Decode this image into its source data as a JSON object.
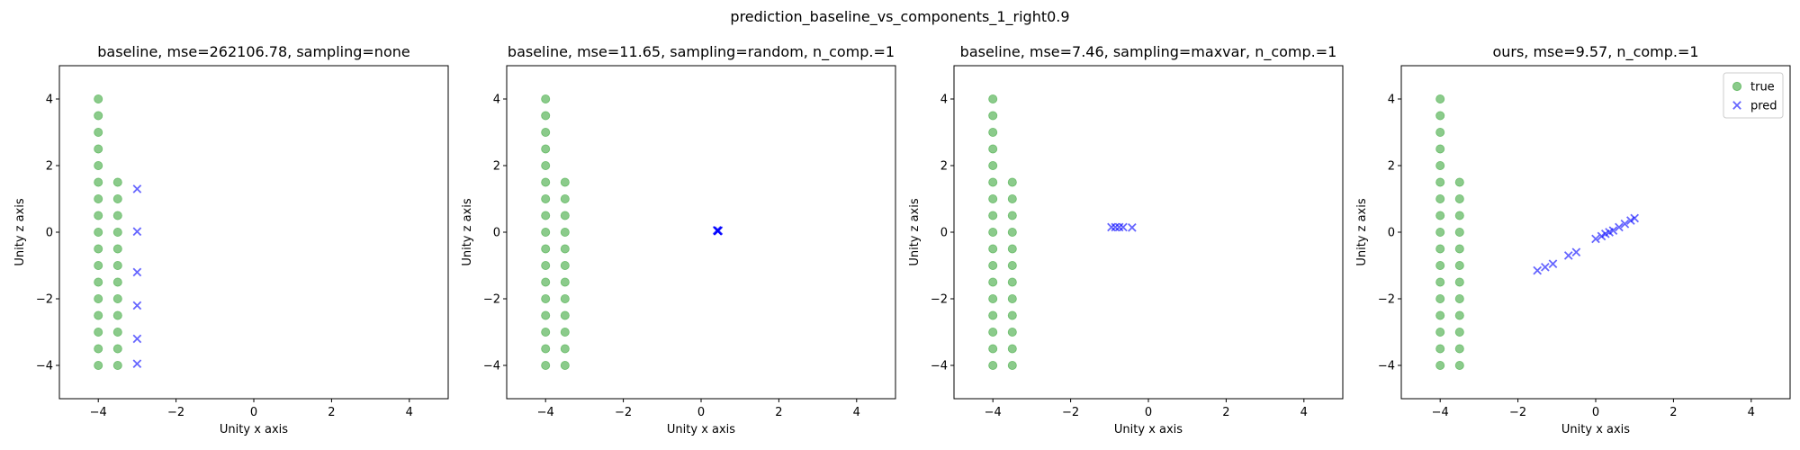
{
  "figure_title": "prediction_baseline_vs_components_1_right0.9",
  "chart_data": [
    {
      "type": "scatter",
      "title": "baseline, mse=262106.78, sampling=none",
      "xlabel": "Unity x axis",
      "ylabel": "Unity z axis",
      "xlim": [
        -5,
        5
      ],
      "ylim": [
        -5,
        5
      ],
      "xticks": [
        -4,
        -2,
        0,
        2,
        4
      ],
      "yticks": [
        -4,
        -2,
        0,
        2,
        4
      ],
      "grid": false,
      "series": [
        {
          "role": "true",
          "marker": "circle",
          "color": "#2ca02c",
          "points": [
            [
              -4,
              4
            ],
            [
              -4,
              3.5
            ],
            [
              -4,
              3
            ],
            [
              -4,
              2.5
            ],
            [
              -4,
              2
            ],
            [
              -4,
              1.5
            ],
            [
              -4,
              1
            ],
            [
              -4,
              0.5
            ],
            [
              -4,
              0
            ],
            [
              -4,
              -0.5
            ],
            [
              -4,
              -1
            ],
            [
              -4,
              -1.5
            ],
            [
              -4,
              -2
            ],
            [
              -4,
              -2.5
            ],
            [
              -4,
              -3
            ],
            [
              -4,
              -3.5
            ],
            [
              -4,
              -4
            ],
            [
              -3.5,
              1.5
            ],
            [
              -3.5,
              1
            ],
            [
              -3.5,
              0.5
            ],
            [
              -3.5,
              0
            ],
            [
              -3.5,
              -0.5
            ],
            [
              -3.5,
              -1
            ],
            [
              -3.5,
              -1.5
            ],
            [
              -3.5,
              -2
            ],
            [
              -3.5,
              -2.5
            ],
            [
              -3.5,
              -3
            ],
            [
              -3.5,
              -3.5
            ],
            [
              -3.5,
              -4
            ]
          ]
        },
        {
          "role": "pred",
          "marker": "x",
          "color": "#0000ff",
          "points": [
            [
              -3,
              1.3
            ],
            [
              -3,
              0.02
            ],
            [
              -3,
              -1.2
            ],
            [
              -3,
              -2.2
            ],
            [
              -3,
              -3.2
            ],
            [
              -3,
              -3.95
            ]
          ]
        }
      ]
    },
    {
      "type": "scatter",
      "title": "baseline, mse=11.65, sampling=random, n_comp.=1",
      "xlabel": "Unity x axis",
      "ylabel": "Unity z axis",
      "xlim": [
        -5,
        5
      ],
      "ylim": [
        -5,
        5
      ],
      "xticks": [
        -4,
        -2,
        0,
        2,
        4
      ],
      "yticks": [
        -4,
        -2,
        0,
        2,
        4
      ],
      "grid": false,
      "series": [
        {
          "role": "true",
          "marker": "circle",
          "color": "#2ca02c",
          "points": [
            [
              -4,
              4
            ],
            [
              -4,
              3.5
            ],
            [
              -4,
              3
            ],
            [
              -4,
              2.5
            ],
            [
              -4,
              2
            ],
            [
              -4,
              1.5
            ],
            [
              -4,
              1
            ],
            [
              -4,
              0.5
            ],
            [
              -4,
              0
            ],
            [
              -4,
              -0.5
            ],
            [
              -4,
              -1
            ],
            [
              -4,
              -1.5
            ],
            [
              -4,
              -2
            ],
            [
              -4,
              -2.5
            ],
            [
              -4,
              -3
            ],
            [
              -4,
              -3.5
            ],
            [
              -4,
              -4
            ],
            [
              -3.5,
              1.5
            ],
            [
              -3.5,
              1
            ],
            [
              -3.5,
              0.5
            ],
            [
              -3.5,
              0
            ],
            [
              -3.5,
              -0.5
            ],
            [
              -3.5,
              -1
            ],
            [
              -3.5,
              -1.5
            ],
            [
              -3.5,
              -2
            ],
            [
              -3.5,
              -2.5
            ],
            [
              -3.5,
              -3
            ],
            [
              -3.5,
              -3.5
            ],
            [
              -3.5,
              -4
            ]
          ]
        },
        {
          "role": "pred",
          "marker": "x",
          "color": "#0000ff",
          "points": [
            [
              0.42,
              0.05
            ],
            [
              0.44,
              0.04
            ],
            [
              0.41,
              0.06
            ],
            [
              0.43,
              0.03
            ],
            [
              0.45,
              0.05
            ],
            [
              0.42,
              0.04
            ]
          ]
        }
      ]
    },
    {
      "type": "scatter",
      "title": "baseline, mse=7.46, sampling=maxvar, n_comp.=1",
      "xlabel": "Unity x axis",
      "ylabel": "Unity z axis",
      "xlim": [
        -5,
        5
      ],
      "ylim": [
        -5,
        5
      ],
      "xticks": [
        -4,
        -2,
        0,
        2,
        4
      ],
      "yticks": [
        -4,
        -2,
        0,
        2,
        4
      ],
      "grid": false,
      "series": [
        {
          "role": "true",
          "marker": "circle",
          "color": "#2ca02c",
          "points": [
            [
              -4,
              4
            ],
            [
              -4,
              3.5
            ],
            [
              -4,
              3
            ],
            [
              -4,
              2.5
            ],
            [
              -4,
              2
            ],
            [
              -4,
              1.5
            ],
            [
              -4,
              1
            ],
            [
              -4,
              0.5
            ],
            [
              -4,
              0
            ],
            [
              -4,
              -0.5
            ],
            [
              -4,
              -1
            ],
            [
              -4,
              -1.5
            ],
            [
              -4,
              -2
            ],
            [
              -4,
              -2.5
            ],
            [
              -4,
              -3
            ],
            [
              -4,
              -3.5
            ],
            [
              -4,
              -4
            ],
            [
              -3.5,
              1.5
            ],
            [
              -3.5,
              1
            ],
            [
              -3.5,
              0.5
            ],
            [
              -3.5,
              0
            ],
            [
              -3.5,
              -0.5
            ],
            [
              -3.5,
              -1
            ],
            [
              -3.5,
              -1.5
            ],
            [
              -3.5,
              -2
            ],
            [
              -3.5,
              -2.5
            ],
            [
              -3.5,
              -3
            ],
            [
              -3.5,
              -3.5
            ],
            [
              -3.5,
              -4
            ]
          ]
        },
        {
          "role": "pred",
          "marker": "x",
          "color": "#0000ff",
          "points": [
            [
              -0.95,
              0.15
            ],
            [
              -0.85,
              0.15
            ],
            [
              -0.75,
              0.15
            ],
            [
              -0.65,
              0.15
            ],
            [
              -0.42,
              0.14
            ]
          ]
        }
      ]
    },
    {
      "type": "scatter",
      "title": "ours, mse=9.57, n_comp.=1",
      "xlabel": "Unity x axis",
      "ylabel": "Unity z axis",
      "xlim": [
        -5,
        5
      ],
      "ylim": [
        -5,
        5
      ],
      "xticks": [
        -4,
        -2,
        0,
        2,
        4
      ],
      "yticks": [
        -4,
        -2,
        0,
        2,
        4
      ],
      "grid": false,
      "legend": {
        "position": "top-right",
        "entries": [
          {
            "label": "true",
            "marker": "circle",
            "color": "#2ca02c"
          },
          {
            "label": "pred",
            "marker": "x",
            "color": "#0000ff"
          }
        ]
      },
      "series": [
        {
          "role": "true",
          "marker": "circle",
          "color": "#2ca02c",
          "points": [
            [
              -4,
              4
            ],
            [
              -4,
              3.5
            ],
            [
              -4,
              3
            ],
            [
              -4,
              2.5
            ],
            [
              -4,
              2
            ],
            [
              -4,
              1.5
            ],
            [
              -4,
              1
            ],
            [
              -4,
              0.5
            ],
            [
              -4,
              0
            ],
            [
              -4,
              -0.5
            ],
            [
              -4,
              -1
            ],
            [
              -4,
              -1.5
            ],
            [
              -4,
              -2
            ],
            [
              -4,
              -2.5
            ],
            [
              -4,
              -3
            ],
            [
              -4,
              -3.5
            ],
            [
              -4,
              -4
            ],
            [
              -3.5,
              1.5
            ],
            [
              -3.5,
              1
            ],
            [
              -3.5,
              0.5
            ],
            [
              -3.5,
              0
            ],
            [
              -3.5,
              -0.5
            ],
            [
              -3.5,
              -1
            ],
            [
              -3.5,
              -1.5
            ],
            [
              -3.5,
              -2
            ],
            [
              -3.5,
              -2.5
            ],
            [
              -3.5,
              -3
            ],
            [
              -3.5,
              -3.5
            ],
            [
              -3.5,
              -4
            ]
          ]
        },
        {
          "role": "pred",
          "marker": "x",
          "color": "#0000ff",
          "points": [
            [
              -1.5,
              -1.15
            ],
            [
              -1.3,
              -1.05
            ],
            [
              -1.1,
              -0.95
            ],
            [
              -0.7,
              -0.7
            ],
            [
              -0.5,
              -0.6
            ],
            [
              0,
              -0.2
            ],
            [
              0.15,
              -0.12
            ],
            [
              0.25,
              -0.05
            ],
            [
              0.35,
              0.0
            ],
            [
              0.45,
              0.05
            ],
            [
              0.6,
              0.15
            ],
            [
              0.75,
              0.25
            ],
            [
              0.9,
              0.35
            ],
            [
              1.0,
              0.42
            ]
          ]
        }
      ]
    }
  ]
}
